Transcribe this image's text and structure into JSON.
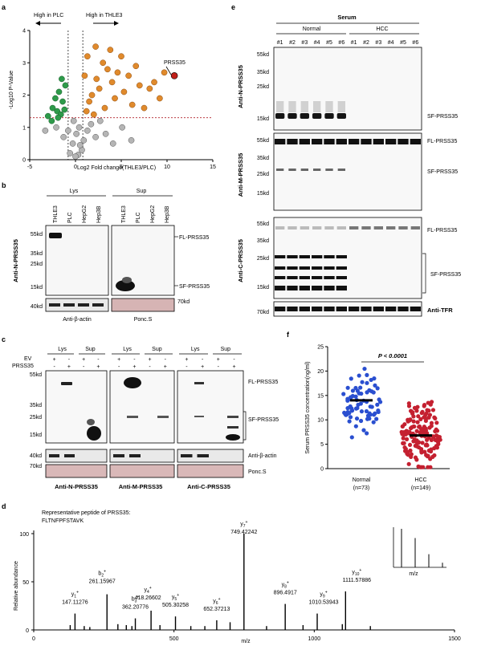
{
  "panel_letters": {
    "a": "a",
    "b": "b",
    "c": "c",
    "d": "d",
    "e": "e",
    "f": "f"
  },
  "panel_a": {
    "high_left": "High in PLC",
    "high_right": "High in THLE3",
    "protein_label": "PRSS35",
    "ylabel": "-Log10  P-Value",
    "xlabel": "Log2 Fold change(THLE3/PLC)",
    "xticks": [
      "-5",
      "0",
      "5",
      "10",
      "15"
    ],
    "yticks": [
      "0",
      "1",
      "2",
      "3",
      "4"
    ],
    "colors": {
      "left": "#2e9a4a",
      "right": "#e08a2c",
      "ns": "#b5b5b5",
      "highlight": "#c0201a",
      "threshold": "#b0202a"
    },
    "chart_data": {
      "type": "scatter",
      "xlim": [
        -5,
        15
      ],
      "ylim": [
        0,
        4
      ],
      "threshold_y": 1.3,
      "vlines_x": [
        -0.8,
        0.8
      ],
      "highlight": {
        "x": 10.8,
        "y": 2.6
      },
      "points_left": [
        [
          -3,
          1.35
        ],
        [
          -2.5,
          1.6
        ],
        [
          -2.2,
          1.9
        ],
        [
          -2,
          1.5
        ],
        [
          -1.8,
          2.1
        ],
        [
          -1.6,
          1.4
        ],
        [
          -1.4,
          1.8
        ],
        [
          -1.2,
          1.55
        ],
        [
          -1.1,
          2.3
        ],
        [
          -2.6,
          1.2
        ],
        [
          -1.9,
          1.3
        ],
        [
          -1.5,
          2.5
        ]
      ],
      "points_right": [
        [
          1.2,
          1.5
        ],
        [
          1.5,
          1.8
        ],
        [
          1.8,
          2.0
        ],
        [
          2.0,
          1.4
        ],
        [
          2.3,
          2.5
        ],
        [
          2.6,
          2.2
        ],
        [
          3.0,
          3.0
        ],
        [
          3.2,
          1.6
        ],
        [
          3.5,
          2.8
        ],
        [
          4.0,
          2.4
        ],
        [
          4.3,
          1.9
        ],
        [
          4.6,
          2.7
        ],
        [
          5.0,
          3.2
        ],
        [
          5.3,
          2.1
        ],
        [
          5.8,
          2.6
        ],
        [
          6.2,
          1.7
        ],
        [
          6.6,
          2.9
        ],
        [
          7.0,
          2.3
        ],
        [
          7.5,
          1.6
        ],
        [
          8.1,
          2.2
        ],
        [
          8.6,
          2.4
        ],
        [
          9.2,
          1.9
        ],
        [
          9.7,
          2.7
        ],
        [
          1.3,
          3.2
        ],
        [
          2.2,
          3.5
        ],
        [
          3.8,
          3.4
        ],
        [
          1.0,
          2.6
        ]
      ],
      "points_ns": [
        [
          -0.6,
          0.2
        ],
        [
          -0.3,
          0.5
        ],
        [
          0.1,
          0.8
        ],
        [
          0.4,
          1.0
        ],
        [
          0.7,
          0.3
        ],
        [
          0.3,
          0.15
        ],
        [
          -0.2,
          1.2
        ],
        [
          0.9,
          0.6
        ],
        [
          1.3,
          0.9
        ],
        [
          1.7,
          1.1
        ],
        [
          2.2,
          0.7
        ],
        [
          3.3,
          0.8
        ],
        [
          4.1,
          0.5
        ],
        [
          5.1,
          1.0
        ],
        [
          6.1,
          0.6
        ],
        [
          -1.3,
          0.7
        ],
        [
          -2.1,
          1.0
        ],
        [
          -3.3,
          0.9
        ],
        [
          0.0,
          0.1
        ],
        [
          0.5,
          0.45
        ],
        [
          -0.8,
          0.9
        ],
        [
          2.7,
          1.2
        ]
      ]
    }
  },
  "panel_b": {
    "group_lys": "Lys",
    "group_sup": "Sup",
    "lanes_lys": [
      "THLE3",
      "PLC",
      "HepG2",
      "Hep3B"
    ],
    "lanes_sup": [
      "THLE3",
      "PLC",
      "HepG2",
      "Hep3B"
    ],
    "mw": [
      "55kd",
      "35kd",
      "25kd",
      "15kd"
    ],
    "mw_loading": "40kd",
    "mw_ponc": "70kd",
    "ylabel": "Anti-N-PRSS35",
    "fl_label": "FL-PRSS35",
    "sf_label": "SF-PRSS35",
    "actin_label": "Anti-β-actin",
    "ponc_label": "Ponc.S"
  },
  "panel_c": {
    "ev": "EV",
    "prss35": "PRSS35",
    "signs": [
      "+",
      "-",
      "+",
      "-"
    ],
    "signs2": [
      "-",
      "+",
      "-",
      "+"
    ],
    "group_lys": "Lys",
    "group_sup": "Sup",
    "mw": [
      "55kd",
      "35kd",
      "25kd",
      "15kd"
    ],
    "mw_loading": "40kd",
    "mw_ponc": "70kd",
    "fl_label": "FL-PRSS35",
    "sf_label": "SF-PRSS35",
    "actin_label": "Anti-β-actin",
    "ponc_label": "Ponc.S",
    "blot_titles": [
      "Anti-N-PRSS35",
      "Anti-M-PRSS35",
      "Anti-C-PRSS35"
    ]
  },
  "panel_d": {
    "title_line1": "Representative peptide of PRSS35:",
    "title_line2": "FLTNFPFSTAVK",
    "ylabel": "Relative abundance",
    "xlabel": "m/z",
    "inset_xlabel": "m/z",
    "xticks": [
      "0",
      "500",
      "1000",
      "1500"
    ],
    "yticks": [
      "0",
      "50",
      "100"
    ],
    "chart_data": {
      "type": "bar",
      "xlim": [
        0,
        1500
      ],
      "ylim": [
        0,
        100
      ],
      "peaks": [
        [
          147.11276,
          17
        ],
        [
          261.15967,
          37
        ],
        [
          362.20776,
          12
        ],
        [
          418.26602,
          20
        ],
        [
          505.30258,
          14
        ],
        [
          652.37213,
          10
        ],
        [
          749.42242,
          100
        ],
        [
          896.4917,
          27
        ],
        [
          1010.53943,
          17
        ],
        [
          1111.57886,
          40
        ],
        [
          130,
          5
        ],
        [
          200,
          3
        ],
        [
          300,
          6
        ],
        [
          330,
          5
        ],
        [
          450,
          5
        ],
        [
          560,
          4
        ],
        [
          610,
          4
        ],
        [
          700,
          8
        ],
        [
          830,
          4
        ],
        [
          960,
          5
        ],
        [
          1100,
          6
        ],
        [
          1200,
          4
        ],
        [
          180,
          4
        ],
        [
          350,
          4
        ]
      ],
      "annotations": [
        {
          "ion": "y",
          "sub": "1",
          "mz": "147.11276"
        },
        {
          "ion": "b",
          "sub": "2",
          "mz": "261.15967"
        },
        {
          "ion": "b",
          "sub": "3",
          "mz": "362.20776"
        },
        {
          "ion": "y",
          "sub": "4",
          "mz": "418.26602"
        },
        {
          "ion": "y",
          "sub": "5",
          "mz": "505.30258"
        },
        {
          "ion": "y",
          "sub": "6",
          "mz": "652.37213"
        },
        {
          "ion": "y",
          "sub": "7",
          "mz": "749.42242"
        },
        {
          "ion": "y",
          "sub": "8",
          "mz": "896.4917"
        },
        {
          "ion": "y",
          "sub": "9",
          "mz": "1010.53943"
        },
        {
          "ion": "y",
          "sub": "10",
          "mz": "1111.57886"
        }
      ],
      "inset_peaks": [
        100,
        76,
        34,
        12
      ]
    }
  },
  "panel_e": {
    "serum": "Serum",
    "normal": "Normal",
    "hcc": "HCC",
    "lanes": [
      "#1",
      "#2",
      "#3",
      "#4",
      "#5",
      "#6",
      "#1",
      "#2",
      "#3",
      "#4",
      "#5",
      "#6"
    ],
    "blot1_label": "Anti-N-PRSS35",
    "blot2_label": "Anti-M-PRSS35",
    "blot3_label": "Anti-C-PRSS35",
    "mw1": [
      "55kd",
      "35kd",
      "25kd",
      "15kd"
    ],
    "mw2": [
      "55kd",
      "35kd",
      "25kd",
      "15kd"
    ],
    "mw3": [
      "55kd",
      "35kd",
      "25kd",
      "15kd"
    ],
    "mw_tfr": "70kd",
    "sf_label": "SF-PRSS35",
    "fl_label": "FL-PRSS35",
    "tfr_label": "Anti-TFR"
  },
  "panel_f": {
    "pvalue": "P < 0.0001",
    "ylabel": "Serum PRSS35 concentration(ng/ml)",
    "yticks": [
      "0",
      "5",
      "10",
      "15",
      "20",
      "25"
    ],
    "groups": [
      "Normal",
      "HCC"
    ],
    "ns": [
      "(n=73)",
      "(n=149)"
    ],
    "colors": {
      "normal": "#2a4fd0",
      "hcc": "#c42030"
    },
    "chart_data": {
      "type": "scatter",
      "ylim": [
        0,
        25
      ],
      "normal_mean": 14.0,
      "hcc_mean": 6.8,
      "normal_range": [
        3.3,
        23.3
      ],
      "hcc_range": [
        0.3,
        21.5
      ]
    }
  }
}
